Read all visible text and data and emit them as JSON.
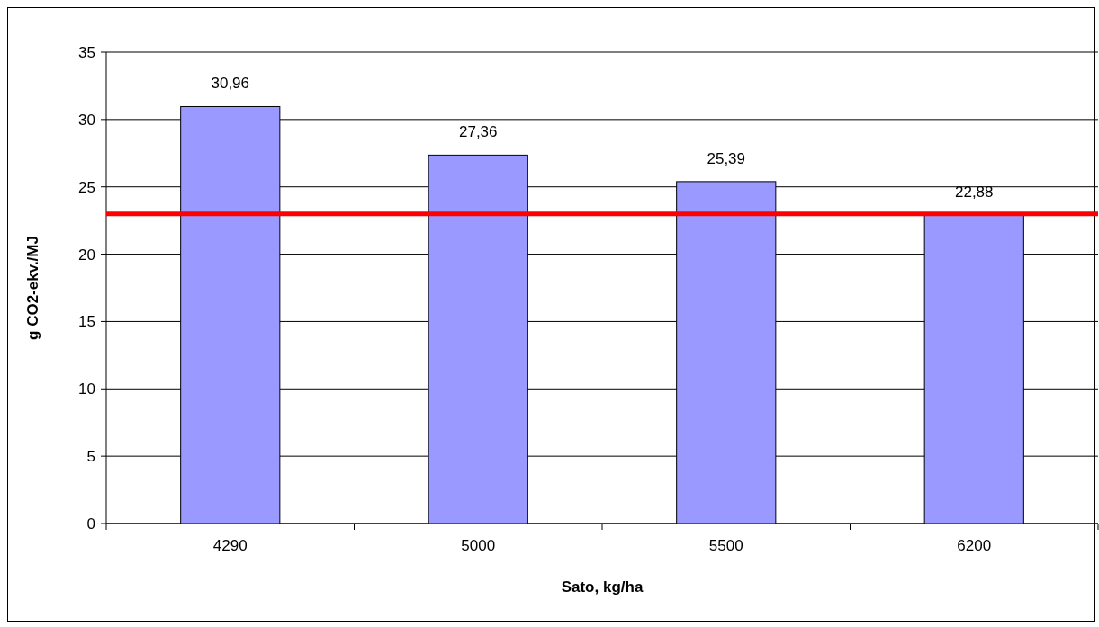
{
  "chart_data": {
    "type": "bar",
    "xlabel": "Sato, kg/ha",
    "ylabel": "g CO2-ekv./MJ",
    "categories": [
      "4290",
      "5000",
      "5500",
      "6200"
    ],
    "values": [
      30.96,
      27.36,
      25.39,
      22.88
    ],
    "value_labels": [
      "30,96",
      "27,36",
      "25,39",
      "22,88"
    ],
    "color": "#9999ff",
    "ylim": [
      0,
      35
    ],
    "yticks": [
      0,
      5,
      10,
      15,
      20,
      25,
      30,
      35
    ],
    "grid": "y",
    "ref_lines": [
      {
        "axis": "y",
        "value": 23,
        "color": "#ff0000",
        "line_style": "solid"
      }
    ]
  }
}
